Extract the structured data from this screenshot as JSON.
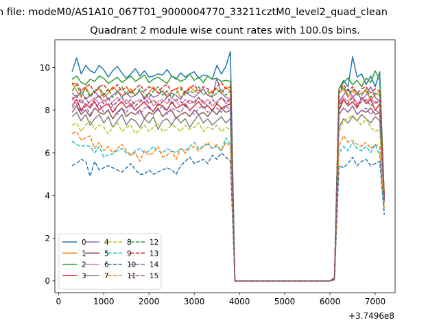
{
  "chart_data": {
    "type": "line",
    "suptitle": "n file: modeM0/AS1A10_067T01_9000004770_33211cztM0_level2_quad_clean",
    "title": "Quadrant 2 module wise count rates with 100.0s bins.",
    "xlabel": "",
    "ylabel": "",
    "x_offset_label": "+3.7496e8",
    "xlim": [
      -80,
      7440
    ],
    "ylim": [
      -0.55,
      11.3
    ],
    "x_ticks": [
      0,
      1000,
      2000,
      3000,
      4000,
      5000,
      6000,
      7000
    ],
    "y_ticks": [
      0,
      2,
      4,
      6,
      8,
      10
    ],
    "legend_position": "lower-left",
    "legend_columns": 4,
    "seg1_x_start": 300,
    "seg2_x_start": 6100,
    "x_step": 100,
    "series": [
      {
        "name": "0",
        "color": "#1f77b4",
        "style": "solid",
        "seg1": [
          9.8,
          10.45,
          9.7,
          10.1,
          9.85,
          9.75,
          10.1,
          9.9,
          9.55,
          9.85,
          10.05,
          9.75,
          9.5,
          9.7,
          9.95,
          9.6,
          9.85,
          9.55,
          9.6,
          9.7,
          9.65,
          9.9,
          9.6,
          9.45,
          9.75,
          9.55,
          9.7,
          9.8,
          9.5,
          9.65,
          9.6,
          9.45,
          10.1,
          9.7,
          10.05,
          10.75
        ],
        "seg2": [
          0.15,
          9.0,
          9.4,
          9.1,
          10.5,
          9.55,
          9.7,
          9.2,
          9.6,
          9.1,
          9.8,
          3.9
        ]
      },
      {
        "name": "1",
        "color": "#ff7f0e",
        "style": "solid",
        "seg1": [
          9.3,
          8.9,
          8.6,
          9.1,
          8.7,
          8.9,
          9.0,
          8.6,
          8.8,
          9.1,
          8.9,
          8.7,
          8.8,
          9.0,
          8.7,
          8.9,
          8.6,
          8.8,
          9.1,
          8.8,
          8.9,
          8.7,
          8.9,
          9.0,
          8.6,
          8.8,
          9.1,
          8.9,
          8.8,
          9.0,
          8.7,
          8.9,
          9.0,
          8.8,
          9.1,
          8.9
        ],
        "seg2": [
          0.1,
          8.8,
          9.0,
          8.6,
          8.9,
          8.7,
          8.8,
          8.9,
          8.5,
          8.7,
          8.9,
          4.0
        ]
      },
      {
        "name": "2",
        "color": "#2ca02c",
        "style": "solid",
        "seg1": [
          9.45,
          9.6,
          9.3,
          9.2,
          9.45,
          9.35,
          9.6,
          9.5,
          9.25,
          9.4,
          9.55,
          9.3,
          9.45,
          9.6,
          9.35,
          9.5,
          9.65,
          9.3,
          9.45,
          9.55,
          9.4,
          9.25,
          9.6,
          9.5,
          9.35,
          9.45,
          9.7,
          9.4,
          9.55,
          9.3,
          9.6,
          9.45,
          9.5,
          9.35,
          9.4,
          9.35
        ],
        "seg2": [
          0.1,
          9.0,
          9.3,
          9.5,
          9.2,
          9.4,
          9.1,
          9.5,
          9.3,
          9.85,
          9.4,
          4.0
        ]
      },
      {
        "name": "3",
        "color": "#d62728",
        "style": "solid",
        "seg1": [
          8.2,
          8.5,
          8.0,
          8.3,
          8.1,
          8.4,
          8.0,
          8.2,
          8.3,
          7.9,
          8.2,
          8.4,
          8.1,
          8.3,
          8.0,
          8.2,
          8.4,
          8.1,
          7.95,
          8.3,
          8.2,
          8.0,
          8.4,
          8.1,
          8.2,
          8.3,
          8.0,
          8.2,
          8.4,
          8.1,
          8.2,
          8.0,
          8.3,
          8.1,
          8.2,
          8.3
        ],
        "seg2": [
          0.1,
          8.0,
          8.5,
          8.2,
          8.4,
          8.1,
          8.6,
          8.3,
          8.5,
          8.0,
          8.3,
          4.0
        ]
      },
      {
        "name": "4",
        "color": "#9467bd",
        "style": "solid",
        "seg1": [
          8.8,
          8.6,
          8.9,
          8.5,
          8.7,
          8.9,
          8.6,
          8.8,
          8.5,
          8.7,
          8.9,
          8.6,
          8.8,
          8.6,
          8.7,
          8.9,
          8.5,
          8.8,
          8.6,
          8.7,
          8.9,
          8.6,
          8.8,
          8.7,
          8.5,
          8.9,
          8.7,
          8.6,
          8.8,
          9.0,
          8.7,
          8.6,
          9.5,
          8.8,
          8.6,
          8.5
        ],
        "seg2": [
          0.1,
          8.4,
          8.7,
          9.0,
          8.6,
          8.8,
          8.5,
          8.7,
          9.1,
          8.6,
          8.4,
          3.9
        ]
      },
      {
        "name": "5",
        "color": "#8c564b",
        "style": "solid",
        "seg1": [
          7.9,
          8.2,
          7.8,
          8.0,
          7.7,
          8.1,
          7.9,
          7.8,
          8.0,
          7.6,
          7.9,
          8.1,
          7.7,
          7.9,
          7.8,
          8.0,
          7.6,
          7.9,
          7.8,
          8.1,
          7.7,
          7.9,
          8.0,
          7.6,
          7.8,
          7.9,
          7.7,
          8.0,
          7.8,
          7.9,
          7.7,
          8.0,
          7.8,
          8.1,
          7.9,
          8.0
        ],
        "seg2": [
          0.1,
          7.8,
          8.1,
          7.9,
          8.2,
          7.8,
          8.0,
          7.9,
          8.1,
          7.8,
          7.9,
          3.8
        ]
      },
      {
        "name": "6",
        "color": "#e377c2",
        "style": "solid",
        "seg1": [
          8.6,
          8.3,
          8.5,
          8.2,
          8.4,
          8.6,
          8.3,
          8.5,
          8.2,
          8.4,
          8.6,
          8.3,
          8.5,
          8.2,
          8.4,
          8.5,
          8.3,
          8.6,
          8.2,
          8.4,
          8.5,
          8.3,
          8.6,
          8.4,
          8.2,
          8.5,
          8.3,
          8.4,
          8.6,
          8.3,
          8.5,
          8.2,
          8.4,
          8.6,
          8.3,
          8.5
        ],
        "seg2": [
          0.1,
          8.3,
          8.6,
          8.4,
          8.7,
          8.3,
          8.5,
          8.4,
          8.6,
          8.3,
          8.5,
          3.9
        ]
      },
      {
        "name": "7",
        "color": "#7f7f7f",
        "style": "solid",
        "seg1": [
          7.7,
          7.9,
          7.5,
          7.8,
          7.3,
          7.6,
          7.8,
          7.4,
          7.7,
          7.2,
          7.5,
          7.8,
          7.3,
          7.6,
          7.5,
          7.2,
          7.6,
          7.4,
          7.7,
          7.1,
          7.5,
          7.6,
          7.3,
          7.7,
          7.4,
          7.6,
          7.2,
          7.5,
          7.8,
          7.4,
          7.6,
          7.3,
          7.5,
          7.7,
          7.4,
          7.6
        ],
        "seg2": [
          0.05,
          7.2,
          7.6,
          7.4,
          7.7,
          7.5,
          7.8,
          7.6,
          7.4,
          7.7,
          7.5,
          3.8
        ]
      },
      {
        "name": "8",
        "color": "#bcbd22",
        "style": "dashed",
        "seg1": [
          7.3,
          7.4,
          7.0,
          7.3,
          7.5,
          7.1,
          7.3,
          7.2,
          6.9,
          7.2,
          7.4,
          7.0,
          7.2,
          7.3,
          6.9,
          7.1,
          7.3,
          7.0,
          7.2,
          7.4,
          7.0,
          7.1,
          7.3,
          7.2,
          7.0,
          7.3,
          7.1,
          7.2,
          7.4,
          7.0,
          7.2,
          7.1,
          7.3,
          7.0,
          7.2,
          7.1
        ],
        "seg2": [
          0.05,
          7.0,
          7.5,
          7.6,
          7.8,
          7.5,
          7.3,
          7.6,
          7.2,
          7.0,
          7.1,
          3.6
        ]
      },
      {
        "name": "9",
        "color": "#17becf",
        "style": "dashed",
        "seg1": [
          6.55,
          6.4,
          6.3,
          6.35,
          6.3,
          6.0,
          6.3,
          5.8,
          5.9,
          5.95,
          6.1,
          6.2,
          6.0,
          5.9,
          6.1,
          6.2,
          6.0,
          6.1,
          6.3,
          6.1,
          6.0,
          6.2,
          6.1,
          6.0,
          6.2,
          6.1,
          6.3,
          6.5,
          6.2,
          6.3,
          6.4,
          6.2,
          6.3,
          6.1,
          6.7,
          6.4
        ],
        "seg2": [
          0.05,
          6.0,
          6.3,
          6.1,
          6.5,
          6.2,
          6.1,
          6.3,
          6.0,
          6.4,
          5.9,
          3.3
        ]
      },
      {
        "name": "10",
        "color": "#1f77b4",
        "style": "dashed",
        "seg1": [
          5.4,
          5.5,
          5.7,
          5.6,
          4.9,
          5.6,
          5.2,
          5.3,
          5.4,
          5.3,
          5.2,
          5.1,
          5.3,
          5.5,
          5.2,
          5.0,
          5.0,
          5.2,
          5.0,
          5.1,
          5.2,
          5.3,
          5.2,
          5.0,
          5.4,
          5.6,
          5.8,
          5.5,
          5.6,
          5.7,
          5.5,
          5.9,
          5.7,
          6.0,
          5.8,
          5.6
        ],
        "seg2": [
          0.05,
          5.4,
          5.3,
          5.5,
          5.8,
          5.4,
          5.6,
          5.7,
          5.4,
          5.5,
          5.6,
          3.1
        ]
      },
      {
        "name": "11",
        "color": "#ff7f0e",
        "style": "dashed",
        "seg1": [
          6.9,
          7.0,
          6.6,
          6.7,
          6.8,
          6.2,
          6.5,
          6.1,
          6.3,
          6.0,
          6.2,
          6.4,
          6.1,
          5.9,
          6.0,
          5.6,
          6.1,
          5.9,
          6.0,
          6.3,
          5.8,
          5.9,
          6.1,
          5.7,
          6.2,
          6.0,
          6.2,
          6.3,
          6.1,
          6.3,
          6.5,
          6.2,
          6.4,
          6.1,
          6.5,
          6.3
        ],
        "seg2": [
          0.05,
          6.3,
          6.8,
          6.5,
          6.6,
          6.4,
          6.3,
          6.5,
          6.2,
          6.4,
          6.3,
          3.4
        ]
      },
      {
        "name": "12",
        "color": "#2ca02c",
        "style": "dashed",
        "seg1": [
          8.9,
          9.2,
          8.7,
          9.0,
          8.6,
          8.9,
          9.1,
          8.7,
          9.0,
          8.6,
          8.8,
          9.1,
          8.7,
          8.9,
          8.7,
          9.0,
          8.8,
          8.6,
          8.9,
          9.1,
          8.7,
          8.9,
          8.6,
          8.8,
          9.0,
          8.7,
          8.9,
          8.8,
          9.1,
          8.7,
          8.9,
          8.6,
          8.8,
          9.0,
          8.7,
          8.9
        ],
        "seg2": [
          0.1,
          8.8,
          9.1,
          8.7,
          9.0,
          8.8,
          8.7,
          9.0,
          8.6,
          8.8,
          8.7,
          3.9
        ]
      },
      {
        "name": "13",
        "color": "#d62728",
        "style": "dashed",
        "seg1": [
          9.2,
          9.3,
          8.9,
          9.1,
          9.2,
          8.8,
          9.1,
          9.2,
          8.9,
          9.0,
          9.2,
          8.9,
          9.1,
          8.8,
          9.0,
          9.2,
          8.9,
          9.1,
          9.0,
          8.8,
          9.1,
          9.2,
          8.9,
          9.0,
          9.1,
          8.8,
          9.0,
          9.2,
          8.9,
          9.1,
          9.0,
          8.8,
          9.1,
          9.3,
          9.0,
          9.1
        ],
        "seg2": [
          0.1,
          8.9,
          9.2,
          8.9,
          9.1,
          8.8,
          9.0,
          9.1,
          8.8,
          9.0,
          8.9,
          4.0
        ]
      },
      {
        "name": "14",
        "color": "#9467bd",
        "style": "dashed",
        "seg1": [
          8.1,
          8.3,
          7.9,
          8.2,
          7.8,
          8.1,
          8.3,
          7.9,
          8.0,
          8.2,
          7.8,
          8.1,
          7.9,
          8.2,
          8.0,
          7.8,
          8.1,
          8.2,
          7.9,
          8.0,
          8.2,
          7.8,
          8.1,
          8.0,
          7.9,
          8.2,
          8.0,
          7.8,
          8.1,
          8.2,
          7.9,
          8.0,
          8.1,
          7.9,
          8.2,
          8.0
        ],
        "seg2": [
          0.05,
          7.8,
          8.1,
          7.9,
          8.2,
          7.8,
          8.0,
          8.1,
          7.8,
          8.0,
          7.9,
          3.7
        ]
      },
      {
        "name": "15",
        "color": "#8c564b",
        "style": "dashed",
        "seg1": [
          8.5,
          8.7,
          8.3,
          8.6,
          8.2,
          8.5,
          8.7,
          8.3,
          8.6,
          8.2,
          8.4,
          8.6,
          8.3,
          8.5,
          8.2,
          8.4,
          8.6,
          8.3,
          8.5,
          8.2,
          8.4,
          8.6,
          8.3,
          8.5,
          8.4,
          8.2,
          8.5,
          8.3,
          8.6,
          8.4,
          8.2,
          8.5,
          8.3,
          8.6,
          8.4,
          8.5
        ],
        "seg2": [
          0.1,
          8.2,
          8.5,
          8.3,
          8.6,
          8.2,
          8.4,
          8.5,
          8.2,
          8.4,
          8.3,
          3.8
        ]
      }
    ]
  }
}
